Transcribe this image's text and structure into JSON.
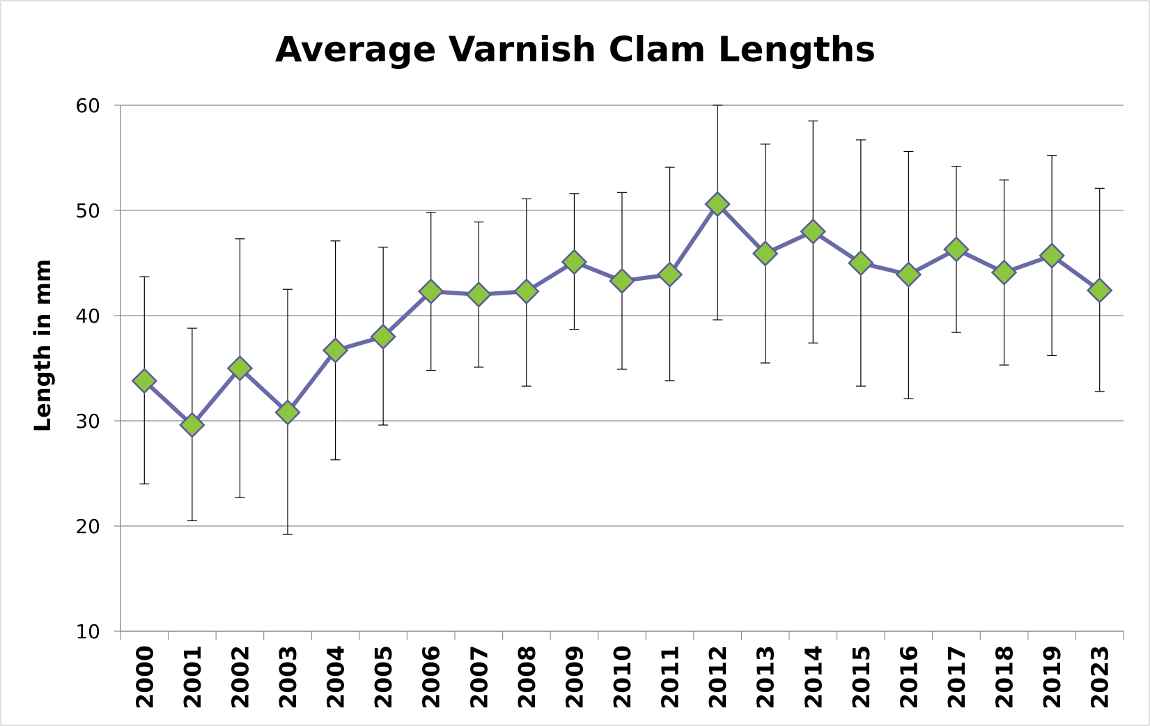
{
  "chart_data": {
    "type": "line",
    "title": "Average Varnish Clam Lengths",
    "xlabel": "",
    "ylabel": "Length in mm",
    "ylim": [
      10,
      60
    ],
    "yticks": [
      "10",
      "20",
      "30",
      "40",
      "50",
      "60"
    ],
    "grid": true,
    "legend": "none",
    "categories": [
      "2000",
      "2001",
      "2002",
      "2003",
      "2004",
      "2005",
      "2006",
      "2007",
      "2008",
      "2009",
      "2010",
      "2011",
      "2012",
      "2013",
      "2014",
      "2015",
      "2016",
      "2017",
      "2018",
      "2019",
      "2023"
    ],
    "series": [
      {
        "values": [
          33.8,
          29.6,
          35.0,
          30.8,
          36.7,
          38.0,
          42.3,
          42.0,
          42.3,
          45.1,
          43.3,
          43.9,
          50.6,
          45.9,
          48.0,
          45.0,
          43.9,
          46.3,
          44.1,
          45.7,
          42.4
        ],
        "error_low": [
          24.0,
          20.5,
          22.7,
          19.2,
          26.3,
          29.6,
          34.8,
          35.1,
          33.3,
          38.7,
          34.9,
          33.8,
          39.6,
          35.5,
          37.4,
          33.3,
          32.1,
          38.4,
          35.3,
          36.2,
          32.8
        ],
        "error_high": [
          43.7,
          38.8,
          47.3,
          42.5,
          47.1,
          46.5,
          49.8,
          48.9,
          51.1,
          51.6,
          51.7,
          54.1,
          60.0,
          56.3,
          58.5,
          56.7,
          55.6,
          54.2,
          52.9,
          55.2,
          52.1
        ]
      }
    ],
    "colors": {
      "line": "#6a6aa8",
      "marker_fill": "#8cc63f",
      "marker_stroke": "#5a5a9a",
      "grid": "#8c8c8c",
      "error_bar": "#000000"
    }
  }
}
